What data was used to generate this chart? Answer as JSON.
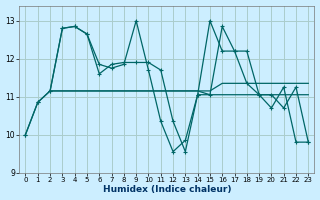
{
  "xlabel": "Humidex (Indice chaleur)",
  "background_color": "#cceeff",
  "grid_color": "#aacccc",
  "line_color": "#006666",
  "xlim": [
    -0.5,
    23.5
  ],
  "ylim": [
    9.0,
    13.4
  ],
  "yticks": [
    9,
    10,
    11,
    12,
    13
  ],
  "xticks": [
    0,
    1,
    2,
    3,
    4,
    5,
    6,
    7,
    8,
    9,
    10,
    11,
    12,
    13,
    14,
    15,
    16,
    17,
    18,
    19,
    20,
    21,
    22,
    23
  ],
  "lines": [
    {
      "x": [
        0,
        1,
        2,
        3,
        4,
        5,
        6,
        7,
        8,
        9,
        10,
        11,
        12,
        13,
        14,
        15,
        16,
        17,
        18,
        19,
        20,
        21,
        22,
        23
      ],
      "y": [
        10.0,
        10.85,
        11.15,
        12.8,
        12.85,
        12.65,
        11.85,
        11.75,
        11.85,
        13.0,
        11.7,
        10.35,
        9.55,
        9.85,
        11.05,
        13.0,
        12.2,
        12.2,
        11.35,
        11.05,
        10.7,
        11.25,
        9.8,
        9.8
      ],
      "marker": true,
      "linestyle": "-"
    },
    {
      "x": [
        0,
        1,
        2,
        3,
        4,
        5,
        6,
        7,
        8,
        9,
        10,
        11,
        12,
        13,
        14,
        15,
        16,
        17,
        18,
        19,
        20,
        21,
        22,
        23
      ],
      "y": [
        10.0,
        10.85,
        11.15,
        12.8,
        12.85,
        12.65,
        11.6,
        11.85,
        11.9,
        11.9,
        11.9,
        11.7,
        10.35,
        9.55,
        11.05,
        11.05,
        12.85,
        12.2,
        12.2,
        11.05,
        11.05,
        10.7,
        11.25,
        9.8
      ],
      "marker": true,
      "linestyle": "-"
    },
    {
      "x": [
        2,
        3,
        4,
        5,
        6,
        7,
        8,
        9,
        10,
        11,
        12,
        13,
        14,
        15,
        16,
        17,
        18,
        19,
        20,
        21,
        22,
        23
      ],
      "y": [
        11.15,
        11.15,
        11.15,
        11.15,
        11.15,
        11.15,
        11.15,
        11.15,
        11.15,
        11.15,
        11.15,
        11.15,
        11.15,
        11.15,
        11.35,
        11.35,
        11.35,
        11.35,
        11.35,
        11.35,
        11.35,
        11.35
      ],
      "marker": false,
      "linestyle": "-"
    },
    {
      "x": [
        2,
        3,
        4,
        5,
        6,
        7,
        8,
        9,
        10,
        11,
        12,
        13,
        14,
        15,
        16,
        17,
        18,
        19,
        20,
        21,
        22,
        23
      ],
      "y": [
        11.15,
        11.15,
        11.15,
        11.15,
        11.15,
        11.15,
        11.15,
        11.15,
        11.15,
        11.15,
        11.15,
        11.15,
        11.15,
        11.05,
        11.05,
        11.05,
        11.05,
        11.05,
        11.05,
        11.05,
        11.05,
        11.05
      ],
      "marker": false,
      "linestyle": "-"
    }
  ]
}
